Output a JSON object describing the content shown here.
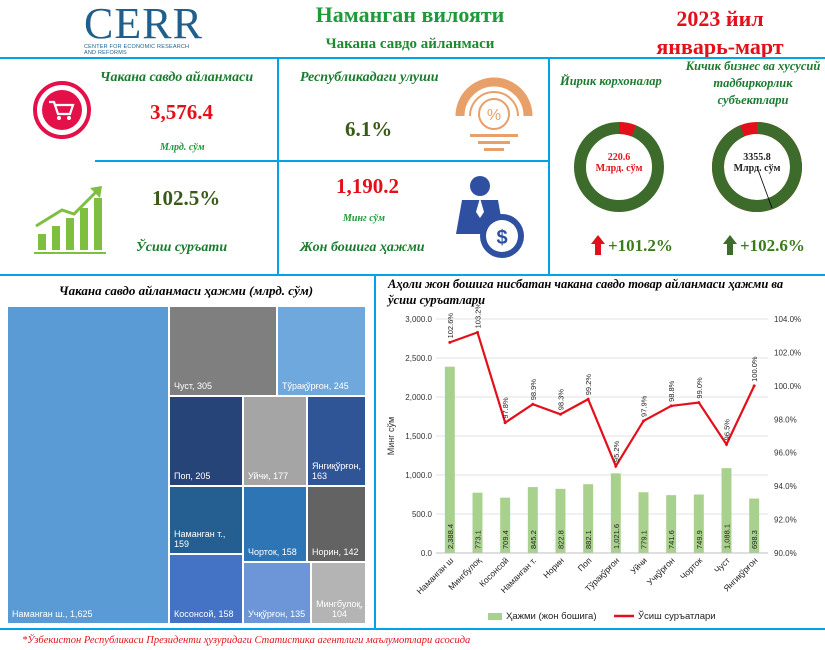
{
  "header": {
    "logo_main": "CERR",
    "logo_sub": "CENTER FOR ECONOMIC RESEARCH AND REFORMS",
    "title": "Наманган вилояти",
    "subtitle": "Чакана савдо айланмаси",
    "year": "2023 йил",
    "period": "январь-март"
  },
  "kpis": {
    "turnover_label": "Чакана савдо айланмаси",
    "turnover_value": "3,576.4",
    "turnover_unit": "Млрд. сўм",
    "share_label": "Республикадаги улуши",
    "share_value": "6.1%",
    "growth_value": "102.5%",
    "growth_label": "Ўсиш суръати",
    "percapita_value": "1,190.2",
    "percapita_unit": "Минг сўм",
    "percapita_label": "Жон бошига ҳажми"
  },
  "enterprises": {
    "large_label": "Йирик корхоналар",
    "large_value": "220.6",
    "large_unit": "Млрд. сўм",
    "large_share": 0.062,
    "large_growth": "+101.2%",
    "small_label": "Кичик бизнес ва хусусий тадбиркорлик субъектлари",
    "small_value": "3355.8",
    "small_unit": "Млрд. сўм",
    "small_share": 0.938,
    "small_growth": "+102.6%"
  },
  "colors": {
    "green": "#3d6b2c",
    "red": "#e3101b",
    "blue_line": "#00a3e8"
  },
  "chart_data": [
    {
      "type": "treemap",
      "title": "Чакана савдо айланмаси ҳажми (млрд. сўм)",
      "items": [
        {
          "name": "Наманган ш.",
          "value": 1625,
          "label": "Наманган ш., 1,625",
          "color": "#5b9bd5"
        },
        {
          "name": "Чуст",
          "value": 305,
          "label": "Чуст, 305",
          "color": "#7f7f7f"
        },
        {
          "name": "Тўрақўрғон",
          "value": 245,
          "label": "Тўрақўрғон, 245",
          "color": "#6fa8dc"
        },
        {
          "name": "Поп",
          "value": 205,
          "label": "Поп, 205",
          "color": "#264478"
        },
        {
          "name": "Уйчи",
          "value": 177,
          "label": "Уйчи, 177",
          "color": "#a5a5a5"
        },
        {
          "name": "Янгиқўрғон",
          "value": 163,
          "label": "Янгиқўрғон, 163",
          "color": "#2f5597"
        },
        {
          "name": "Наманган т.",
          "value": 159,
          "label": "Наманган т., 159",
          "color": "#255e91"
        },
        {
          "name": "Чорток",
          "value": 158,
          "label": "Чорток, 158",
          "color": "#2e75b6"
        },
        {
          "name": "Норин",
          "value": 142,
          "label": "Норин, 142",
          "color": "#636363"
        },
        {
          "name": "Косонсой",
          "value": 158,
          "label": "Косонсой, 158",
          "color": "#4472c4"
        },
        {
          "name": "Учқўрғон",
          "value": 135,
          "label": "Учқўрғон, 135",
          "color": "#6d96d8"
        },
        {
          "name": "Мингбулоқ",
          "value": 104,
          "label": "Мингбулоқ, 104",
          "color": "#b4b4b4"
        }
      ]
    },
    {
      "type": "bar+line",
      "title": "Аҳоли жон бошига нисбатан чакана савдо товар айланмаси ҳажми ва ўсиш суръатлари",
      "ylabel": "Минг сўм",
      "ylim": [
        0,
        3000
      ],
      "y2lim": [
        90,
        104
      ],
      "y_ticks": [
        "0.0",
        "500.0",
        "1,000.0",
        "1,500.0",
        "2,000.0",
        "2,500.0",
        "3,000.0"
      ],
      "y2_ticks": [
        "90.0%",
        "92.0%",
        "94.0%",
        "96.0%",
        "98.0%",
        "100.0%",
        "102.0%",
        "104.0%"
      ],
      "categories": [
        "Наманган ш",
        "Мингбулоқ",
        "Косонсой",
        "Наманган т.",
        "Норин",
        "Поп",
        "Тўрақўрғон",
        "Уйчи",
        "Учқўрғон",
        "Чорток",
        "Чуст",
        "Янгиқўрғон"
      ],
      "series": [
        {
          "name": "Ҳажми (жон бошига)",
          "kind": "bar",
          "color": "#a9d18e",
          "values": [
            2388.4,
            773.1,
            709.4,
            845.2,
            822.8,
            882.1,
            1021.6,
            779.1,
            741.6,
            749.9,
            1088.1,
            698.3
          ],
          "labels": [
            "2,388.4",
            "773.1",
            "709.4",
            "845.2",
            "822.8",
            "882.1",
            "1,021.6",
            "779.1",
            "741.6",
            "749.9",
            "1,088.1",
            "698.3"
          ]
        },
        {
          "name": "Ўсиш суръатлари",
          "kind": "line",
          "color": "#e3101b",
          "values": [
            102.6,
            103.2,
            97.8,
            98.9,
            98.3,
            99.2,
            95.2,
            97.9,
            98.8,
            99.0,
            96.5,
            100.0
          ],
          "labels": [
            "102.6%",
            "103.2%",
            "97.8%",
            "98.9%",
            "98.3%",
            "99.2%",
            "95.2%",
            "97.9%",
            "98.8%",
            "99.0%",
            "96.5%",
            "100.0%"
          ]
        }
      ],
      "legend": "bottom"
    }
  ],
  "footer": "*Ўзбекистон Республикаси Президенти ҳузуридаги Статистика агентлиги маълумотлари асосида"
}
